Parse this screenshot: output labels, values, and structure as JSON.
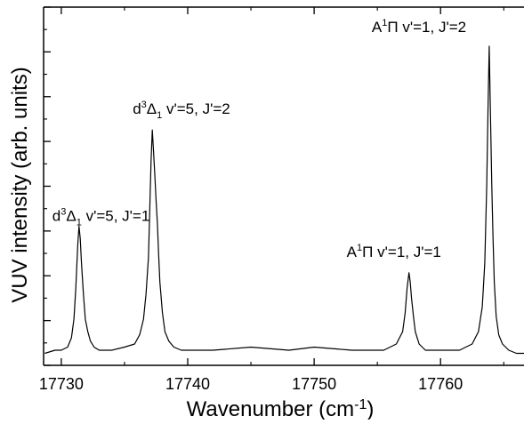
{
  "chart_data": {
    "type": "line",
    "title": "",
    "xlabel": "Wavenumber (cm",
    "xlabel_superscript": "-1",
    "xlabel_suffix": ")",
    "ylabel": "VUV intensity (arb. units)",
    "xlim": [
      17728.6,
      17766.6
    ],
    "ylim": [
      0.0,
      1.0
    ],
    "x_ticks": [
      17730,
      17740,
      17750,
      17760
    ],
    "x_tick_labels": [
      "17730",
      "17740",
      "17750",
      "17760"
    ],
    "y_tick_labels_shown": false,
    "grid": false,
    "series": [
      {
        "name": "",
        "x": [
          17728.7,
          17729.5,
          17730.0,
          17730.5,
          17730.8,
          17731.0,
          17731.15,
          17731.3,
          17731.4,
          17731.5,
          17731.6,
          17731.75,
          17731.9,
          17732.1,
          17732.3,
          17732.6,
          17733.0,
          17734.0,
          17735.0,
          17735.8,
          17736.2,
          17736.5,
          17736.7,
          17736.9,
          17737.0,
          17737.1,
          17737.2,
          17737.3,
          17737.4,
          17737.5,
          17737.6,
          17737.7,
          17737.8,
          17738.0,
          17738.2,
          17738.5,
          17738.9,
          17739.5,
          17742.0,
          17745.0,
          17748.0,
          17750.0,
          17753.0,
          17755.5,
          17756.5,
          17757.0,
          17757.2,
          17757.35,
          17757.5,
          17757.6,
          17757.7,
          17757.85,
          17758.0,
          17758.3,
          17758.8,
          17760.0,
          17761.5,
          17762.5,
          17763.0,
          17763.3,
          17763.5,
          17763.65,
          17763.75,
          17763.85,
          17763.95,
          17764.05,
          17764.15,
          17764.25,
          17764.4,
          17764.6,
          17764.9,
          17765.4,
          17766.0,
          17766.6
        ],
        "y": [
          0.01,
          0.02,
          0.02,
          0.03,
          0.06,
          0.12,
          0.22,
          0.36,
          0.42,
          0.38,
          0.3,
          0.2,
          0.12,
          0.08,
          0.05,
          0.03,
          0.02,
          0.02,
          0.03,
          0.04,
          0.07,
          0.12,
          0.2,
          0.32,
          0.48,
          0.63,
          0.73,
          0.66,
          0.58,
          0.5,
          0.43,
          0.33,
          0.24,
          0.14,
          0.08,
          0.05,
          0.03,
          0.02,
          0.02,
          0.03,
          0.02,
          0.03,
          0.02,
          0.02,
          0.04,
          0.08,
          0.14,
          0.22,
          0.27,
          0.24,
          0.19,
          0.13,
          0.08,
          0.04,
          0.02,
          0.02,
          0.02,
          0.04,
          0.08,
          0.16,
          0.3,
          0.55,
          0.79,
          1.0,
          0.78,
          0.55,
          0.38,
          0.24,
          0.13,
          0.07,
          0.04,
          0.02,
          0.01,
          0.01
        ]
      }
    ],
    "annotations": [
      {
        "id": "peak1",
        "x": 17731.4,
        "y": 0.42,
        "main": "d",
        "sup": "3",
        "symbol": "Δ",
        "sub": "1",
        "rest": " v'=5, J'=1"
      },
      {
        "id": "peak2",
        "x": 17737.2,
        "y": 0.73,
        "main": "d",
        "sup": "3",
        "symbol": "Δ",
        "sub": "1",
        "rest": " v'=5, J'=2"
      },
      {
        "id": "peak3",
        "x": 17757.5,
        "y": 0.27,
        "main": "A",
        "sup": "1",
        "symbol": "Π",
        "sub": "",
        "rest": " v'=1, J'=1"
      },
      {
        "id": "peak4",
        "x": 17763.85,
        "y": 1.0,
        "main": "A",
        "sup": "1",
        "symbol": "Π",
        "sub": "",
        "rest": " v'=1, J'=2"
      }
    ],
    "colors": {
      "line": "#000000",
      "axes": "#000000",
      "background": "#ffffff"
    }
  }
}
